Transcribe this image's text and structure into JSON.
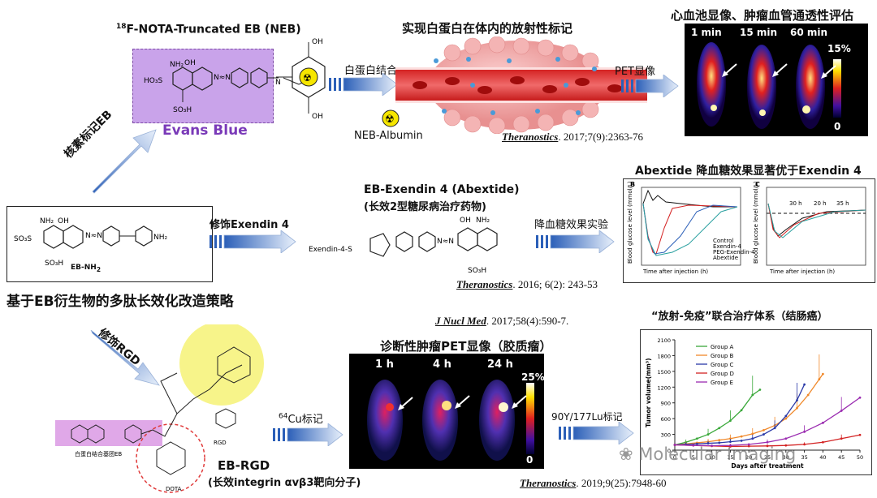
{
  "top": {
    "neb_title": "18F-NOTA-Truncated EB (NEB)",
    "neb_sup": "18",
    "neb_title_rest": "F-NOTA-Truncated EB (NEB)",
    "evans_blue": "Evans Blue",
    "arrow_albumin": "白蛋白结合",
    "albumin_title": "实现白蛋白在体内的放射性标记",
    "neb_albumin": "NEB-Albumin",
    "cite1_journal": "Theranostics",
    "cite1_rest": ". 2017;7(9):2363-76",
    "arrow_pet": "PET显像",
    "pet_title": "心血池显像、肿瘤血管通透性评估",
    "pet_times": [
      "1 min",
      "15 min",
      "60 min"
    ],
    "pet_scale_max": "15%",
    "pet_scale_min": "0"
  },
  "left": {
    "arrow_label": "核素标记EB",
    "eb_label": "EB-NH",
    "eb_sub": "2",
    "main_title": "基于EB衍生物的多肽长效化改造策略",
    "arrow_rgd": "修饰RGD"
  },
  "middle": {
    "arrow_exendin": "修饰Exendin 4",
    "exendin_title": "EB-Exendin 4 (Abextide)",
    "exendin_subtitle": "(长效2型糖尿病治疗药物)",
    "exendin_s": "Exendin-4-S",
    "arrow_glucose": "降血糖效果实验",
    "cite2_journal": "Theranostics",
    "cite2_rest": ". 2016; 6(2): 243-53",
    "abextide_title": "Abextide 降血糖效果显著优于Exendin 4"
  },
  "glucose_charts": {
    "panel_b": "B",
    "panel_c": "C",
    "ylabel": "Blood glucose level (mmol/L)",
    "xlabel": "Time after injection (h)",
    "legend": [
      "Control",
      "Exendin-4",
      "PEG-Exendin-4",
      "Abextide"
    ],
    "annotations": [
      "30 h",
      "20 h",
      "35 h"
    ]
  },
  "bottom": {
    "cite3_journal": "J Nucl Med",
    "cite3_rest": ". 2017;58(4):590-7.",
    "glioma_title": "诊断性肿瘤PET显像（胶质瘤）",
    "glioma_times": [
      "1 h",
      "4 h",
      "24 h"
    ],
    "glioma_scale_max": "25%",
    "glioma_scale_min": "0",
    "arrow_cu_sup": "64",
    "arrow_cu_rest": "Cu标记",
    "rgd_label": "RGD",
    "albumin_group": "白蛋白结合基团EB",
    "dota": "DOTA",
    "eb_rgd": "EB-RGD",
    "eb_rgd_sub": "(长效integrin αvβ3靶向分子)",
    "arrow_lu": "90Y/177Lu标记",
    "therapy_title": "“放射-免疫”联合治疗体系（结肠癌）",
    "cite4_journal": "Theranostics",
    "cite4_rest": ". 2019;9(25):7948-60",
    "watermark": "Molecular Imaging"
  },
  "chart_data": {
    "type": "line",
    "title": "",
    "xlabel": "Days after treatment",
    "ylabel": "Tumor volume(mm³)",
    "ylim": [
      0,
      2100
    ],
    "xlim": [
      0,
      50
    ],
    "yticks": [
      0,
      300,
      600,
      900,
      1200,
      1500,
      1800,
      2100
    ],
    "xticks": [
      0,
      5,
      10,
      15,
      20,
      25,
      30,
      35,
      40,
      45,
      50
    ],
    "legend_position": "top-left",
    "series": [
      {
        "name": "Group A",
        "color": "#3aa83a",
        "x": [
          0,
          3,
          6,
          9,
          12,
          15,
          18,
          21,
          23
        ],
        "y": [
          100,
          150,
          220,
          300,
          420,
          560,
          760,
          1050,
          1150
        ]
      },
      {
        "name": "Group B",
        "color": "#f0892b",
        "x": [
          0,
          3,
          6,
          9,
          12,
          15,
          18,
          21,
          24,
          27,
          30,
          33,
          36,
          39,
          40
        ],
        "y": [
          100,
          120,
          140,
          160,
          190,
          220,
          260,
          310,
          380,
          470,
          600,
          800,
          1050,
          1350,
          1450
        ]
      },
      {
        "name": "Group C",
        "color": "#2b3aa8",
        "x": [
          0,
          3,
          6,
          9,
          12,
          15,
          18,
          21,
          24,
          27,
          30,
          33,
          35
        ],
        "y": [
          100,
          110,
          120,
          130,
          140,
          160,
          180,
          220,
          300,
          420,
          650,
          950,
          1250
        ]
      },
      {
        "name": "Group D",
        "color": "#d32222",
        "x": [
          0,
          5,
          10,
          15,
          20,
          25,
          30,
          35,
          40,
          45,
          50
        ],
        "y": [
          100,
          90,
          80,
          70,
          75,
          80,
          90,
          110,
          150,
          220,
          290
        ]
      },
      {
        "name": "Group E",
        "color": "#9a2bb0",
        "x": [
          0,
          5,
          10,
          15,
          20,
          25,
          30,
          35,
          40,
          45,
          50
        ],
        "y": [
          100,
          90,
          85,
          90,
          110,
          150,
          220,
          350,
          520,
          750,
          1000
        ]
      }
    ]
  }
}
